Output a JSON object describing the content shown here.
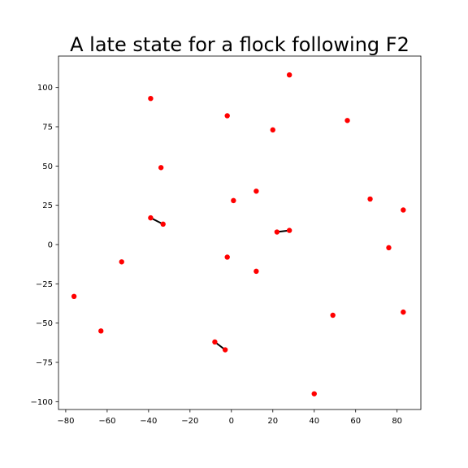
{
  "chart_data": {
    "type": "scatter",
    "title": "A late state for a flock following F2",
    "xlabel": "",
    "ylabel": "",
    "xlim": [
      -83.5,
      91.5
    ],
    "ylim": [
      -105,
      120
    ],
    "xticks": [
      -80,
      -60,
      -40,
      -20,
      0,
      20,
      40,
      60,
      80
    ],
    "xtick_labels": [
      "−80",
      "−60",
      "−40",
      "−20",
      "0",
      "20",
      "40",
      "60",
      "80"
    ],
    "yticks": [
      100,
      75,
      50,
      25,
      0,
      -25,
      -50,
      -75,
      -100
    ],
    "ytick_labels": [
      "100",
      "75",
      "50",
      "25",
      "0",
      "−25",
      "−50",
      "−75",
      "−100"
    ],
    "grid": false,
    "legend": false,
    "point_color": "#ff0000",
    "line_color": "#000000",
    "points": [
      {
        "x": 28,
        "y": 108
      },
      {
        "x": -39,
        "y": 93
      },
      {
        "x": -2,
        "y": 82
      },
      {
        "x": 56,
        "y": 79
      },
      {
        "x": 20,
        "y": 73
      },
      {
        "x": -34,
        "y": 49
      },
      {
        "x": 12,
        "y": 34
      },
      {
        "x": 1,
        "y": 28
      },
      {
        "x": 67,
        "y": 29
      },
      {
        "x": 83,
        "y": 22
      },
      {
        "x": -39,
        "y": 17
      },
      {
        "x": -33,
        "y": 13
      },
      {
        "x": 22,
        "y": 8
      },
      {
        "x": 28,
        "y": 9
      },
      {
        "x": 76,
        "y": -2
      },
      {
        "x": -2,
        "y": -8
      },
      {
        "x": -53,
        "y": -11
      },
      {
        "x": 12,
        "y": -17
      },
      {
        "x": -76,
        "y": -33
      },
      {
        "x": 49,
        "y": -45
      },
      {
        "x": 83,
        "y": -43
      },
      {
        "x": -63,
        "y": -55
      },
      {
        "x": -8,
        "y": -62
      },
      {
        "x": -3,
        "y": -67
      },
      {
        "x": 40,
        "y": -95
      }
    ],
    "links": [
      {
        "from": [
          -39,
          17
        ],
        "to": [
          -33,
          13
        ]
      },
      {
        "from": [
          22,
          8
        ],
        "to": [
          28,
          9
        ]
      },
      {
        "from": [
          -8,
          -62
        ],
        "to": [
          -3,
          -67
        ]
      }
    ]
  }
}
